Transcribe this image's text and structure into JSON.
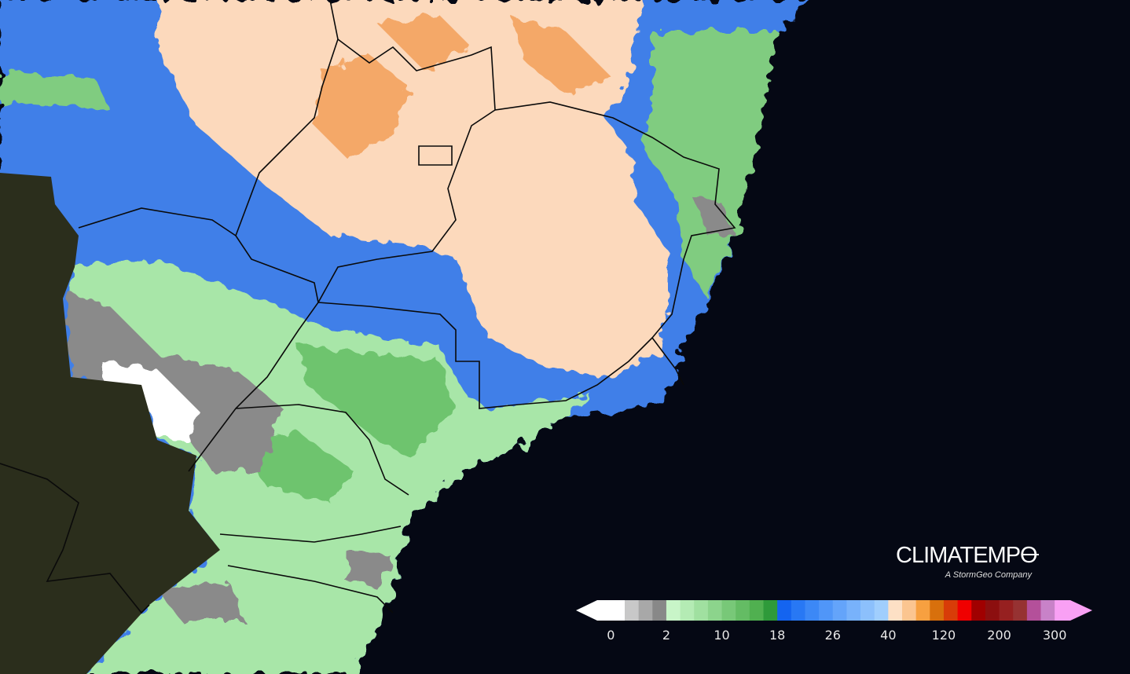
{
  "logo": {
    "title": "CLIMATEMPO",
    "subtitle": "A StormGeo Company"
  },
  "legend": {
    "ticks": [
      0,
      2,
      10,
      18,
      26,
      40,
      120,
      200,
      300
    ],
    "under_color": "#ffffff",
    "over_color": "#f9a0f4",
    "colors": [
      "#c8c8c8",
      "#a8a8a8",
      "#888888",
      "#c8f5c8",
      "#b4ebb4",
      "#a0e0a0",
      "#8cd48c",
      "#78c878",
      "#64bc64",
      "#50b050",
      "#2e9a3a",
      "#1464f0",
      "#2878f4",
      "#3c88f6",
      "#5096f8",
      "#64a4fa",
      "#78b2fb",
      "#8cc0fc",
      "#a0cefd",
      "#fde0c5",
      "#fbc590",
      "#f7a040",
      "#d8700c",
      "#d83c08",
      "#f00000",
      "#a00000",
      "#8c0f0f",
      "#962020",
      "#963232",
      "#b4509a",
      "#c882c8"
    ]
  }
}
